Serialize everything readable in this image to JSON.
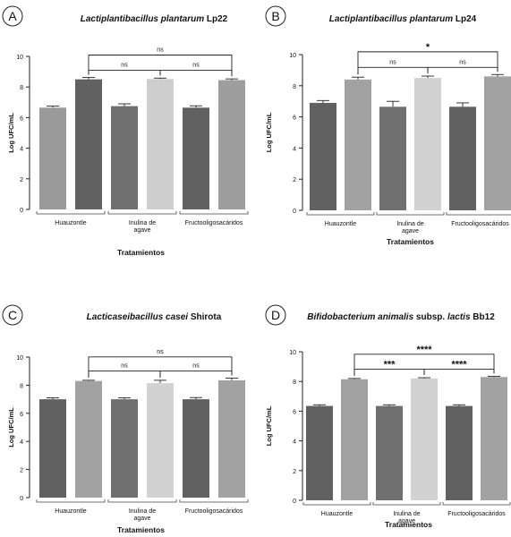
{
  "chart_data": [
    {
      "type": "bar",
      "panel_label": "A",
      "title_italic": "Lactiplantibacillus plantarum",
      "title_suffix": "Lp22",
      "ylabel": "Log UFC/mL",
      "xlabel": "Tratamientos",
      "ylim": [
        0,
        10
      ],
      "yticks": [
        0,
        2,
        4,
        6,
        8,
        10
      ],
      "groups": [
        {
          "label": [
            "Huauzontle"
          ],
          "span": [
            0,
            1
          ]
        },
        {
          "label": [
            "Inulina de",
            "agave"
          ],
          "span": [
            2,
            3
          ]
        },
        {
          "label": [
            "Fructooligosacáridos"
          ],
          "span": [
            4,
            5
          ]
        }
      ],
      "bars": [
        {
          "value": 6.65,
          "error": 0.1,
          "color": "#9a9a9a"
        },
        {
          "value": 8.5,
          "error": 0.12,
          "color": "#616161"
        },
        {
          "value": 6.75,
          "error": 0.15,
          "color": "#6f6f6f"
        },
        {
          "value": 8.52,
          "error": 0.06,
          "color": "#cecece"
        },
        {
          "value": 6.65,
          "error": 0.12,
          "color": "#616161"
        },
        {
          "value": 8.45,
          "error": 0.08,
          "color": "#9e9e9e"
        }
      ],
      "significance": [
        {
          "from": 1,
          "to": 5,
          "label": "ns",
          "level": 2
        },
        {
          "from": 1,
          "to": 3,
          "label": "ns",
          "level": 1
        },
        {
          "from": 3,
          "to": 5,
          "label": "ns",
          "level": 1
        }
      ]
    },
    {
      "type": "bar",
      "panel_label": "B",
      "title_italic": "Lactiplantibacillus plantarum",
      "title_suffix": "Lp24",
      "ylabel": "Log UFC/mL",
      "xlabel": "Tratamientos",
      "ylim": [
        0,
        10
      ],
      "yticks": [
        0,
        2,
        4,
        6,
        8,
        10
      ],
      "groups": [
        {
          "label": [
            "Huauzontle"
          ],
          "span": [
            0,
            1
          ]
        },
        {
          "label": [
            "Inulina de",
            "agave"
          ],
          "span": [
            2,
            3
          ]
        },
        {
          "label": [
            "Fructooligosacáridos"
          ],
          "span": [
            4,
            5
          ]
        }
      ],
      "bars": [
        {
          "value": 6.9,
          "error": 0.15,
          "color": "#616161"
        },
        {
          "value": 8.4,
          "error": 0.15,
          "color": "#a2a2a2"
        },
        {
          "value": 6.65,
          "error": 0.35,
          "color": "#6f6f6f"
        },
        {
          "value": 8.5,
          "error": 0.12,
          "color": "#d2d2d2"
        },
        {
          "value": 6.65,
          "error": 0.25,
          "color": "#616161"
        },
        {
          "value": 8.6,
          "error": 0.12,
          "color": "#a2a2a2"
        }
      ],
      "significance": [
        {
          "from": 1,
          "to": 5,
          "label": "*",
          "level": 2
        },
        {
          "from": 1,
          "to": 3,
          "label": "ns",
          "level": 1
        },
        {
          "from": 3,
          "to": 5,
          "label": "ns",
          "level": 1
        }
      ]
    },
    {
      "type": "bar",
      "panel_label": "C",
      "title_italic": "Lacticaseibacillus casei",
      "title_suffix": "Shirota",
      "ylabel": "Log UFC/mL",
      "xlabel": "Tratamientos",
      "ylim": [
        0,
        10
      ],
      "yticks": [
        0,
        2,
        4,
        6,
        8,
        10
      ],
      "groups": [
        {
          "label": [
            "Huauzontle"
          ],
          "span": [
            0,
            1
          ]
        },
        {
          "label": [
            "Inulina de",
            "agave"
          ],
          "span": [
            2,
            3
          ]
        },
        {
          "label": [
            "Fructooligosacáridos"
          ],
          "span": [
            4,
            5
          ]
        }
      ],
      "bars": [
        {
          "value": 7.0,
          "error": 0.1,
          "color": "#616161"
        },
        {
          "value": 8.3,
          "error": 0.05,
          "color": "#a2a2a2"
        },
        {
          "value": 7.0,
          "error": 0.1,
          "color": "#6f6f6f"
        },
        {
          "value": 8.15,
          "error": 0.2,
          "color": "#d2d2d2"
        },
        {
          "value": 7.0,
          "error": 0.12,
          "color": "#616161"
        },
        {
          "value": 8.35,
          "error": 0.15,
          "color": "#a2a2a2"
        }
      ],
      "significance": [
        {
          "from": 1,
          "to": 5,
          "label": "ns",
          "level": 2
        },
        {
          "from": 1,
          "to": 3,
          "label": "ns",
          "level": 1
        },
        {
          "from": 3,
          "to": 5,
          "label": "ns",
          "level": 1
        }
      ]
    },
    {
      "type": "bar",
      "panel_label": "D",
      "title_italic": "Bifidobacterium animalis",
      "title_suffix": "subsp.",
      "title_italic2": "lactis",
      "title_suffix2": "Bb12",
      "ylabel": "Log UFC/mL",
      "xlabel": "Tratamientos",
      "ylim": [
        0,
        10
      ],
      "yticks": [
        0,
        2,
        4,
        6,
        8,
        10
      ],
      "groups": [
        {
          "label": [
            "Huauzontle"
          ],
          "span": [
            0,
            1
          ]
        },
        {
          "label": [
            "Inulina de",
            "agave"
          ],
          "span": [
            2,
            3
          ]
        },
        {
          "label": [
            "Fructooligosacáridos"
          ],
          "span": [
            4,
            5
          ]
        }
      ],
      "bars": [
        {
          "value": 6.35,
          "error": 0.08,
          "color": "#616161"
        },
        {
          "value": 8.15,
          "error": 0.05,
          "color": "#a2a2a2"
        },
        {
          "value": 6.35,
          "error": 0.08,
          "color": "#6f6f6f"
        },
        {
          "value": 8.2,
          "error": 0.05,
          "color": "#d2d2d2"
        },
        {
          "value": 6.35,
          "error": 0.08,
          "color": "#616161"
        },
        {
          "value": 8.3,
          "error": 0.05,
          "color": "#a2a2a2"
        }
      ],
      "significance": [
        {
          "from": 1,
          "to": 5,
          "label": "****",
          "level": 2
        },
        {
          "from": 1,
          "to": 3,
          "label": "***",
          "level": 1
        },
        {
          "from": 3,
          "to": 5,
          "label": "****",
          "level": 1
        }
      ]
    }
  ]
}
